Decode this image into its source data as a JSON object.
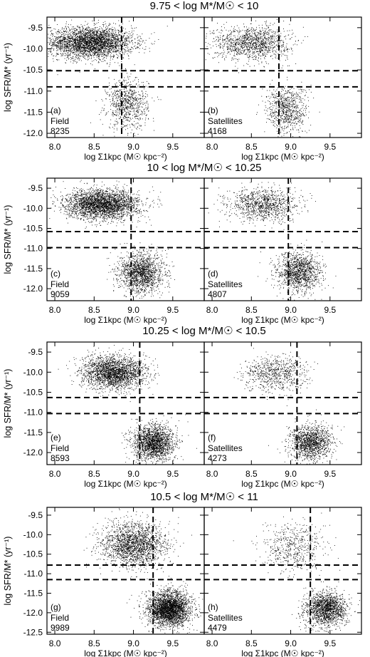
{
  "chart_data": [
    {
      "type": "scatter",
      "title": "9.75 < log M*/M☉ < 10",
      "ylabel": "log SFR/M* (yr⁻¹)",
      "y_ticks": [
        "-9.5",
        "-10.0",
        "-10.5",
        "-11.0",
        "-11.5",
        "-12.0"
      ],
      "ylim": [
        -12.1,
        -9.25
      ],
      "sigma_cut": 8.85,
      "ssfr_cuts": [
        -10.52,
        -10.9
      ],
      "panels": [
        {
          "label": "(a)",
          "sample": "Field",
          "count": "8235",
          "xlabel": "log Σ1kpc (M☉ kpc⁻²)",
          "xlim": [
            7.9,
            9.9
          ],
          "x_ticks": [
            "8.0",
            "8.5",
            "9.0",
            "9.5"
          ],
          "density_clusters": [
            {
              "x": 8.45,
              "y": -9.85,
              "sx": 0.27,
              "sy": 0.18,
              "weight": 0.8
            },
            {
              "x": 8.92,
              "y": -11.3,
              "sx": 0.13,
              "sy": 0.3,
              "weight": 0.2
            }
          ]
        },
        {
          "label": "(b)",
          "sample": "Satellites",
          "count": "4168",
          "xlabel": "log Σ1kpc (M☉ kpc⁻²)",
          "xlim": [
            7.9,
            9.9
          ],
          "x_ticks": [
            "8.0",
            "8.5",
            "9.0",
            "9.5"
          ],
          "density_clusters": [
            {
              "x": 8.5,
              "y": -9.85,
              "sx": 0.24,
              "sy": 0.2,
              "weight": 0.62
            },
            {
              "x": 8.95,
              "y": -11.45,
              "sx": 0.13,
              "sy": 0.28,
              "weight": 0.38
            }
          ]
        }
      ]
    },
    {
      "type": "scatter",
      "title": "10 < log M*/M☉ < 10.25",
      "ylabel": "log SFR/M* (yr⁻¹)",
      "y_ticks": [
        "-9.5",
        "-10.0",
        "-10.5",
        "-11.0",
        "-11.5",
        "-12.0"
      ],
      "ylim": [
        -12.3,
        -9.25
      ],
      "sigma_cut": 8.97,
      "ssfr_cuts": [
        -10.58,
        -10.98
      ],
      "panels": [
        {
          "label": "(c)",
          "sample": "Field",
          "count": "9059",
          "xlabel": "log Σ1kpc (M☉ kpc⁻²)",
          "xlim": [
            7.9,
            9.9
          ],
          "x_ticks": [
            "8.0",
            "8.5",
            "9.0",
            "9.5"
          ],
          "density_clusters": [
            {
              "x": 8.6,
              "y": -9.9,
              "sx": 0.23,
              "sy": 0.18,
              "weight": 0.65
            },
            {
              "x": 9.1,
              "y": -11.6,
              "sx": 0.14,
              "sy": 0.25,
              "weight": 0.35
            }
          ]
        },
        {
          "label": "(d)",
          "sample": "Satellites",
          "count": "4807",
          "xlabel": "log Σ1kpc (M☉ kpc⁻²)",
          "xlim": [
            7.9,
            9.9
          ],
          "x_ticks": [
            "8.0",
            "8.5",
            "9.0",
            "9.5"
          ],
          "density_clusters": [
            {
              "x": 8.65,
              "y": -9.9,
              "sx": 0.22,
              "sy": 0.2,
              "weight": 0.45
            },
            {
              "x": 9.1,
              "y": -11.6,
              "sx": 0.14,
              "sy": 0.25,
              "weight": 0.55
            }
          ]
        }
      ]
    },
    {
      "type": "scatter",
      "title": "10.25 < log M*/M☉ < 10.5",
      "ylabel": "log SFR/M* (yr⁻¹)",
      "y_ticks": [
        "-9.5",
        "-10.0",
        "-10.5",
        "-11.0",
        "-11.5",
        "-12.0"
      ],
      "ylim": [
        -12.3,
        -9.25
      ],
      "sigma_cut": 9.08,
      "ssfr_cuts": [
        -10.63,
        -11.03
      ],
      "panels": [
        {
          "label": "(e)",
          "sample": "Field",
          "count": "8593",
          "xlabel": "log Σ1kpc (M☉ kpc⁻²)",
          "xlim": [
            7.9,
            9.9
          ],
          "x_ticks": [
            "8.0",
            "8.5",
            "9.0",
            "9.5"
          ],
          "density_clusters": [
            {
              "x": 8.75,
              "y": -10.0,
              "sx": 0.2,
              "sy": 0.2,
              "weight": 0.55
            },
            {
              "x": 9.25,
              "y": -11.75,
              "sx": 0.13,
              "sy": 0.22,
              "weight": 0.45
            }
          ]
        },
        {
          "label": "(f)",
          "sample": "Satellites",
          "count": "4273",
          "xlabel": "log Σ1kpc (M☉ kpc⁻²)",
          "xlim": [
            7.9,
            9.9
          ],
          "x_ticks": [
            "8.0",
            "8.5",
            "9.0",
            "9.5"
          ],
          "density_clusters": [
            {
              "x": 8.8,
              "y": -10.05,
              "sx": 0.2,
              "sy": 0.22,
              "weight": 0.35
            },
            {
              "x": 9.25,
              "y": -11.75,
              "sx": 0.13,
              "sy": 0.22,
              "weight": 0.65
            }
          ]
        }
      ]
    },
    {
      "type": "scatter",
      "title": "10.5 < log M*/M☉ < 11",
      "ylabel": "log SFR/M* (yr⁻¹)",
      "y_ticks": [
        "-9.5",
        "-10.0",
        "-10.5",
        "-11.0",
        "-11.5",
        "-12.0",
        "-12.5"
      ],
      "ylim": [
        -12.55,
        -9.3
      ],
      "sigma_cut": 9.25,
      "ssfr_cuts": [
        -10.78,
        -11.15
      ],
      "panels": [
        {
          "label": "(g)",
          "sample": "Field",
          "count": "9989",
          "xlabel": "log Σ1kpc (M☉ kpc⁻²)",
          "xlim": [
            7.9,
            9.9
          ],
          "x_ticks": [
            "8.0",
            "8.5",
            "9.0",
            "9.5"
          ],
          "density_clusters": [
            {
              "x": 9.0,
              "y": -10.25,
              "sx": 0.2,
              "sy": 0.28,
              "weight": 0.4
            },
            {
              "x": 9.45,
              "y": -11.9,
              "sx": 0.13,
              "sy": 0.22,
              "weight": 0.6
            }
          ]
        },
        {
          "label": "(h)",
          "sample": "Satellites",
          "count": "4479",
          "xlabel": "log Σ1kpc (M☉ kpc⁻²)",
          "xlim": [
            7.9,
            9.9
          ],
          "x_ticks": [
            "8.0",
            "8.5",
            "9.0",
            "9.5"
          ],
          "density_clusters": [
            {
              "x": 9.05,
              "y": -10.35,
              "sx": 0.2,
              "sy": 0.3,
              "weight": 0.25
            },
            {
              "x": 9.45,
              "y": -11.9,
              "sx": 0.13,
              "sy": 0.22,
              "weight": 0.75
            }
          ]
        }
      ]
    }
  ]
}
